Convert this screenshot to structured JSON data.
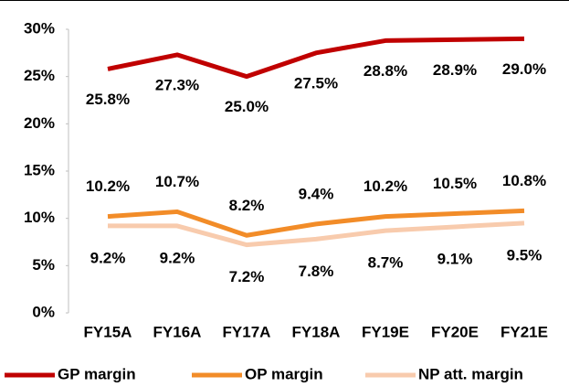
{
  "chart_data": {
    "type": "line",
    "categories": [
      "FY15A",
      "FY16A",
      "FY17A",
      "FY18A",
      "FY19E",
      "FY20E",
      "FY21E"
    ],
    "series": [
      {
        "name": "GP margin",
        "color": "#c00000",
        "values": [
          25.8,
          27.3,
          25.0,
          27.5,
          28.8,
          28.9,
          29.0
        ],
        "value_labels": [
          "25.8%",
          "27.3%",
          "25.0%",
          "27.5%",
          "28.8%",
          "28.9%",
          "29.0%"
        ]
      },
      {
        "name": "OP margin",
        "color": "#f28c28",
        "values": [
          10.2,
          10.7,
          8.2,
          9.4,
          10.2,
          10.5,
          10.8
        ],
        "value_labels": [
          "10.2%",
          "10.7%",
          "8.2%",
          "9.4%",
          "10.2%",
          "10.5%",
          "10.8%"
        ]
      },
      {
        "name": "NP att. margin",
        "color": "#f8cbad",
        "values": [
          9.2,
          9.2,
          7.2,
          7.8,
          8.7,
          9.1,
          9.5
        ],
        "value_labels": [
          "9.2%",
          "9.2%",
          "7.2%",
          "7.8%",
          "8.7%",
          "9.1%",
          "9.5%"
        ]
      }
    ],
    "ylim": [
      0,
      30
    ],
    "yticks": [
      {
        "value": 0,
        "label": "0%"
      },
      {
        "value": 5,
        "label": "5%"
      },
      {
        "value": 10,
        "label": "10%"
      },
      {
        "value": 15,
        "label": "15%"
      },
      {
        "value": 20,
        "label": "20%"
      },
      {
        "value": 25,
        "label": "25%"
      },
      {
        "value": 30,
        "label": "30%"
      }
    ],
    "grid": false,
    "legend": "bottom"
  }
}
